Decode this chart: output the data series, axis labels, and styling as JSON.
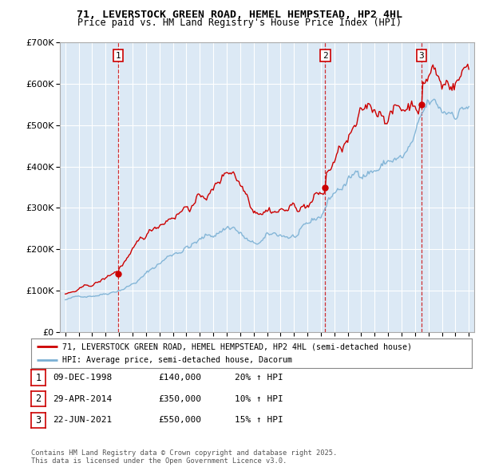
{
  "title_line1": "71, LEVERSTOCK GREEN ROAD, HEMEL HEMPSTEAD, HP2 4HL",
  "title_line2": "Price paid vs. HM Land Registry's House Price Index (HPI)",
  "background_color": "#ffffff",
  "plot_bg_color": "#dce9f5",
  "grid_color": "#ffffff",
  "purchase_color": "#cc0000",
  "hpi_color": "#7ab0d4",
  "purchase_dates": [
    1998.94,
    2014.33,
    2021.47
  ],
  "purchase_prices": [
    140000,
    350000,
    550000
  ],
  "legend_purchase": "71, LEVERSTOCK GREEN ROAD, HEMEL HEMPSTEAD, HP2 4HL (semi-detached house)",
  "legend_hpi": "HPI: Average price, semi-detached house, Dacorum",
  "table_rows": [
    {
      "num": "1",
      "date": "09-DEC-1998",
      "price": "£140,000",
      "hpi": "20% ↑ HPI"
    },
    {
      "num": "2",
      "date": "29-APR-2014",
      "price": "£350,000",
      "hpi": "10% ↑ HPI"
    },
    {
      "num": "3",
      "date": "22-JUN-2021",
      "price": "£550,000",
      "hpi": "15% ↑ HPI"
    }
  ],
  "footnote": "Contains HM Land Registry data © Crown copyright and database right 2025.\nThis data is licensed under the Open Government Licence v3.0.",
  "ylim": [
    0,
    700000
  ],
  "xlim_start": 1994.6,
  "xlim_end": 2025.4
}
